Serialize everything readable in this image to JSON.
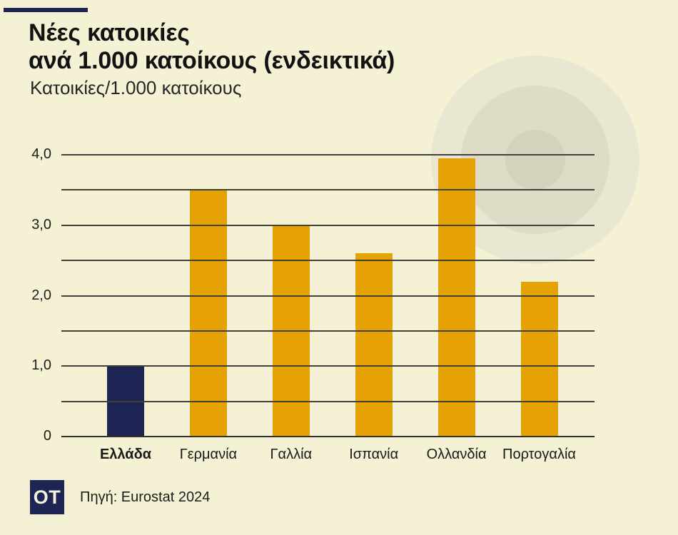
{
  "header": {
    "title_line1": "Νέες κατοικίες",
    "title_line2": "ανά 1.000 κατοίκους (ενδεικτικά)",
    "subtitle": "Κατοικίες/1.000 κατοίκους"
  },
  "chart_data": {
    "type": "bar",
    "title": "Νέες κατοικίες ανά 1.000 κατοίκους (ενδεικτικά)",
    "ylabel": "Κατοικίες/1.000 κατοίκους",
    "categories": [
      "Ελλάδα",
      "Γερμανία",
      "Γαλλία",
      "Ισπανία",
      "Ολλανδία",
      "Πορτογαλία"
    ],
    "values": [
      1.0,
      3.5,
      3.0,
      2.6,
      3.95,
      2.2
    ],
    "highlight_index": 0,
    "highlight_category": "Ελλάδα",
    "ylim": [
      0,
      4
    ],
    "gridline_interval": 0.5,
    "ytick_labels": [
      "4,0",
      "3,0",
      "2,0",
      "1,0",
      "0"
    ],
    "ytick_values": [
      4,
      3,
      2,
      1,
      0
    ],
    "grid": true,
    "legend": "none",
    "bar_color": "#e6a203",
    "highlight_color": "#1c2553"
  },
  "footer": {
    "logo": "OT",
    "source": "Πηγή: Eurostat 2024"
  },
  "colors": {
    "background": "#f4f1d4",
    "accent_navy": "#1c2553",
    "accent_orange": "#e6a203",
    "gridline": "#41413a"
  }
}
